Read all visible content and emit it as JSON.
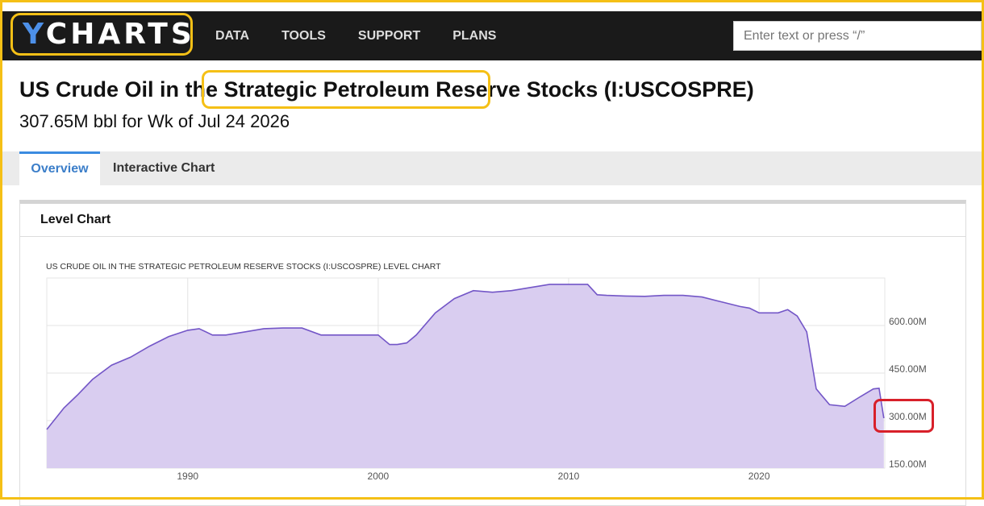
{
  "brand": {
    "logo_y": "Y",
    "logo_rest": "CHARTS"
  },
  "nav": [
    {
      "label": "DATA"
    },
    {
      "label": "TOOLS"
    },
    {
      "label": "SUPPORT"
    },
    {
      "label": "PLANS"
    }
  ],
  "search": {
    "placeholder": "Enter text or press “/”"
  },
  "page": {
    "title_prefix": "US Crude Oil in the ",
    "title_highlight": "Strategic Petroleum Reserve",
    "title_suffix": " Stocks (I:USCOSPRE)",
    "subtitle": "307.65M bbl for Wk of Jul 24 2026"
  },
  "tabs": [
    {
      "label": "Overview",
      "active": true
    },
    {
      "label": "Interactive Chart",
      "active": false
    }
  ],
  "panel": {
    "heading": "Level Chart"
  },
  "colors": {
    "accent": "#3b8be0",
    "highlight": "#f5c016",
    "annotation": "#d8202a",
    "area_fill": "#d9cdf0",
    "line": "#7356c7"
  },
  "chart_data": {
    "type": "area",
    "title": "US CRUDE OIL IN THE STRATEGIC PETROLEUM RESERVE STOCKS (I:USCOSPRE) LEVEL CHART",
    "x_ticks": [
      "1990",
      "2000",
      "2010",
      "2020"
    ],
    "y_ticks": [
      "150.00M",
      "300.00M",
      "450.00M",
      "600.00M"
    ],
    "xlim": [
      1982.6,
      2026.6
    ],
    "ylim": [
      150,
      750
    ],
    "ylabel_position": "right",
    "grid": true,
    "highlighted_tick": "300.00M",
    "series": [
      {
        "x": [
          1982.6,
          1983.5,
          1984.2,
          1985.0,
          1986.0,
          1987.0,
          1988.0,
          1989.0,
          1990.0,
          1990.6,
          1991.3,
          1992.0,
          1993.0,
          1994.0,
          1995.0,
          1996.0,
          1997.0,
          1997.5,
          1998.0,
          1999.0,
          2000.0,
          2000.6,
          2001.0,
          2001.5,
          2002.0,
          2003.0,
          2004.0,
          2005.0,
          2006.0,
          2007.0,
          2008.0,
          2009.0,
          2010.0,
          2011.0,
          2011.5,
          2012.0,
          2013.0,
          2014.0,
          2015.0,
          2016.0,
          2017.0,
          2018.0,
          2019.0,
          2019.5,
          2020.0,
          2020.5,
          2021.0,
          2021.5,
          2022.0,
          2022.5,
          2023.0,
          2023.7,
          2024.5,
          2025.3,
          2026.0,
          2026.3,
          2026.55
        ],
        "y": [
          272,
          340,
          380,
          430,
          475,
          500,
          535,
          565,
          585,
          590,
          570,
          570,
          580,
          590,
          592,
          592,
          570,
          570,
          570,
          570,
          570,
          540,
          540,
          545,
          570,
          640,
          685,
          710,
          705,
          710,
          720,
          730,
          730,
          730,
          697,
          695,
          693,
          692,
          695,
          695,
          690,
          675,
          660,
          655,
          640,
          640,
          640,
          650,
          630,
          580,
          400,
          350,
          345,
          375,
          400,
          402,
          307.65
        ]
      }
    ]
  }
}
